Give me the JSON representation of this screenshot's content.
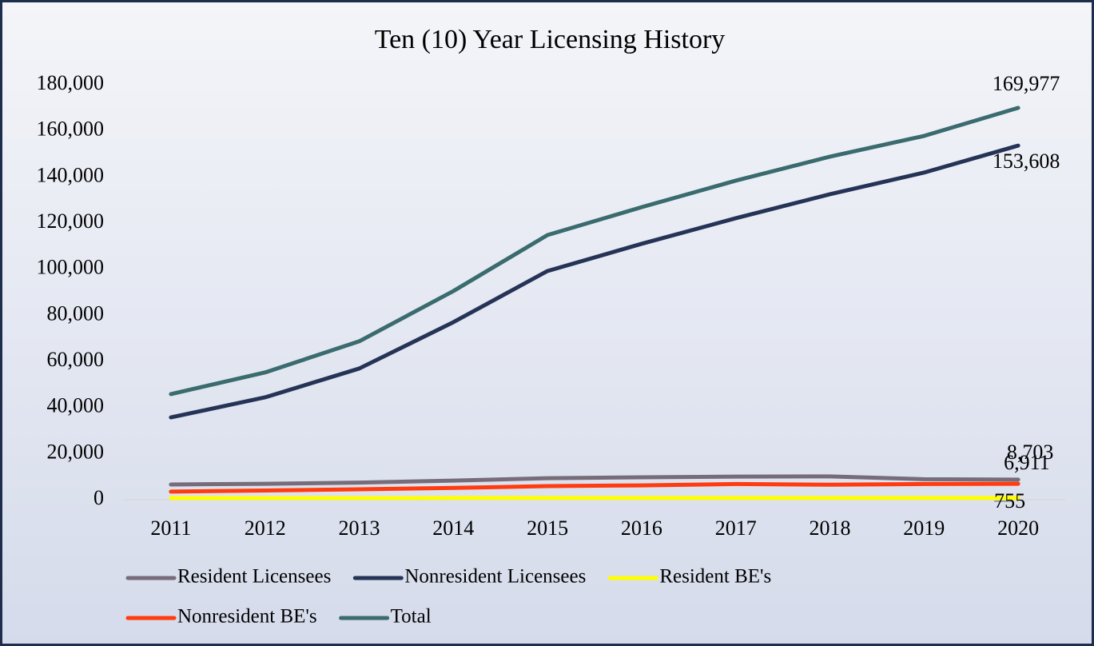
{
  "chart_data": {
    "type": "line",
    "title": "Ten (10) Year Licensing History",
    "categories": [
      "2011",
      "2012",
      "2013",
      "2014",
      "2015",
      "2016",
      "2017",
      "2018",
      "2019",
      "2020"
    ],
    "ylim": [
      0,
      180000
    ],
    "yticks": [
      0,
      {
        "value": 20000,
        "label": "20,000"
      },
      {
        "value": 40000,
        "label": "40,000"
      },
      {
        "value": 60000,
        "label": "60,000"
      },
      {
        "value": 80000,
        "label": "80,000"
      },
      {
        "value": 100000,
        "label": "100,000"
      },
      {
        "value": 120000,
        "label": "120,000"
      },
      {
        "value": 140000,
        "label": "140,000"
      },
      {
        "value": 160000,
        "label": "160,000"
      },
      {
        "value": 180000,
        "label": "180,000"
      }
    ],
    "legend": "bottom",
    "series": [
      {
        "name": "Resident Licensees",
        "color": "#776c7a",
        "values": [
          6600,
          6900,
          7400,
          8300,
          9300,
          9700,
          10000,
          10100,
          8900,
          8703
        ],
        "value_labels": [
          null,
          null,
          null,
          null,
          null,
          null,
          null,
          null,
          null,
          "8,703"
        ]
      },
      {
        "name": "Nonresident Licensees",
        "color": "#253356",
        "values": [
          35700,
          44400,
          56900,
          77000,
          99200,
          111000,
          122100,
          132500,
          141900,
          153608
        ],
        "value_labels": [
          null,
          null,
          null,
          null,
          null,
          null,
          null,
          null,
          null,
          "153,608"
        ]
      },
      {
        "name": "Resident BE's",
        "color": "#ffff00",
        "values": [
          700,
          700,
          710,
          720,
          730,
          740,
          745,
          750,
          752,
          755
        ],
        "value_labels": [
          null,
          null,
          null,
          null,
          null,
          null,
          null,
          null,
          null,
          "755"
        ]
      },
      {
        "name": "Nonresident BE's",
        "color": "#ff3b0f",
        "values": [
          3500,
          4000,
          4500,
          5100,
          5900,
          6200,
          6800,
          6500,
          6800,
          6911
        ],
        "value_labels": [
          null,
          null,
          null,
          null,
          null,
          null,
          null,
          null,
          null,
          "6,911"
        ]
      },
      {
        "name": "Total",
        "color": "#3a6b6e",
        "values": [
          45800,
          55200,
          68700,
          90500,
          114800,
          126900,
          138400,
          148800,
          157800,
          169977
        ],
        "value_labels": [
          null,
          null,
          null,
          null,
          null,
          null,
          null,
          null,
          null,
          "169,977"
        ]
      }
    ]
  }
}
